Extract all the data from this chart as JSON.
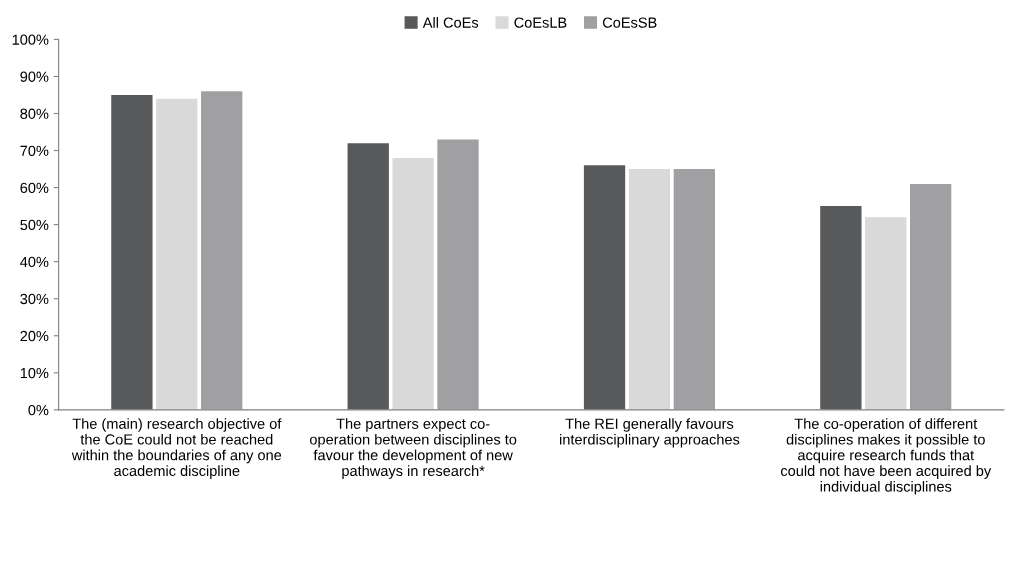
{
  "chart_data": {
    "type": "bar",
    "categories": [
      "The (main) research objective of\nthe CoE could not be reached\nwithin the boundaries of any one\nacademic discipline",
      "The partners expect co-\noperation between disciplines to\nfavour the development of new\npathways in research*",
      "The REI generally favours\ninterdisciplinary approaches",
      "The co-operation of different\ndisciplines makes it possible to\nacquire research funds that\ncould not have been acquired by\nindividual disciplines"
    ],
    "series": [
      {
        "name": "All CoEs",
        "color": "#58595b",
        "values": [
          85,
          72,
          66,
          55
        ]
      },
      {
        "name": "CoEsLB",
        "color": "#d9d9d9",
        "values": [
          84,
          68,
          65,
          52
        ]
      },
      {
        "name": "CoEsSB",
        "color": "#a0a0a2",
        "values": [
          86,
          73,
          65,
          61
        ]
      }
    ],
    "ylim": [
      0,
      100
    ],
    "yticks": [
      {
        "value": 0,
        "label": "0%"
      },
      {
        "value": 10,
        "label": "10%"
      },
      {
        "value": 20,
        "label": "20%"
      },
      {
        "value": 30,
        "label": "30%"
      },
      {
        "value": 40,
        "label": "40%"
      },
      {
        "value": 50,
        "label": "50%"
      },
      {
        "value": 60,
        "label": "60%"
      },
      {
        "value": 70,
        "label": "70%"
      },
      {
        "value": 80,
        "label": "80%"
      },
      {
        "value": 90,
        "label": "90%"
      },
      {
        "value": 100,
        "label": "100%"
      }
    ],
    "grid": false,
    "legend": "top"
  }
}
